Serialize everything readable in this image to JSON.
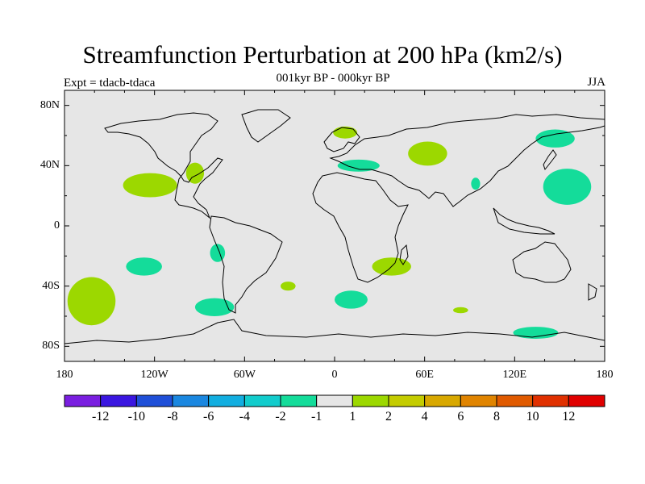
{
  "title": "Streamfunction Perturbation at 200 hPa (km2/s)",
  "subtitle": "001kyr BP - 000kyr BP",
  "experiment": "Expt = tdacb-tdaca",
  "season": "JJA",
  "map": {
    "projection": "cylindrical equidistant",
    "lon_range": [
      -180,
      180
    ],
    "lat_range": [
      -90,
      90
    ],
    "land_fill": "#e6e6e6",
    "lat_ticks": [
      {
        "value": 80,
        "label": "80N"
      },
      {
        "value": 40,
        "label": "40N"
      },
      {
        "value": 0,
        "label": "0"
      },
      {
        "value": -40,
        "label": "40S"
      },
      {
        "value": -80,
        "label": "80S"
      }
    ],
    "lon_ticks": [
      {
        "value": -180,
        "label": "180"
      },
      {
        "value": -120,
        "label": "120W"
      },
      {
        "value": -60,
        "label": "60W"
      },
      {
        "value": 0,
        "label": "0"
      },
      {
        "value": 60,
        "label": "60E"
      },
      {
        "value": 120,
        "label": "120E"
      },
      {
        "value": 180,
        "label": "180"
      }
    ]
  },
  "colorbar": {
    "colors": [
      "#7a1ee0",
      "#3a16e0",
      "#1f4fd8",
      "#1a87e0",
      "#12aee0",
      "#12cccc",
      "#14dc9a",
      "#e6e6e6",
      "#9cd800",
      "#c4cc00",
      "#d8a800",
      "#e08400",
      "#e05a00",
      "#e03000",
      "#e00000"
    ],
    "labels": [
      "-12",
      "-10",
      "-8",
      "-6",
      "-4",
      "-2",
      "-1",
      "1",
      "2",
      "4",
      "6",
      "8",
      "10",
      "12"
    ]
  },
  "chart_data": {
    "type": "contour-map",
    "title": "Streamfunction Perturbation at 200 hPa (km2/s)",
    "subtitle": "001kyr BP - 000kyr BP",
    "units": "km2/s",
    "levels": [
      -12,
      -10,
      -8,
      -6,
      -4,
      -2,
      -1,
      1,
      2,
      4,
      6,
      8,
      10,
      12
    ],
    "regions": [
      {
        "name": "north-pacific-east-positive",
        "level_bin": "1 to 2",
        "lon": -123,
        "lat": 27,
        "rx": 18,
        "ry": 8,
        "color": "#9cd800"
      },
      {
        "name": "gulf-of-mexico-positive",
        "level_bin": "1 to 2",
        "lon": -93,
        "lat": 35,
        "rx": 6,
        "ry": 7,
        "color": "#9cd800"
      },
      {
        "name": "scandinavia-positive",
        "level_bin": "1 to 2",
        "lon": 7,
        "lat": 62,
        "rx": 8,
        "ry": 4,
        "color": "#9cd800"
      },
      {
        "name": "central-asia-positive",
        "level_bin": "1 to 2",
        "lon": 62,
        "lat": 48,
        "rx": 13,
        "ry": 8,
        "color": "#9cd800"
      },
      {
        "name": "south-africa-positive",
        "level_bin": "1 to 2",
        "lon": 38,
        "lat": -27,
        "rx": 13,
        "ry": 6,
        "color": "#9cd800"
      },
      {
        "name": "south-pacific-positive",
        "level_bin": "1 to 2",
        "lon": -162,
        "lat": -50,
        "rx": 16,
        "ry": 16,
        "color": "#9cd800"
      },
      {
        "name": "south-atlantic-small-positive",
        "level_bin": "1 to 2",
        "lon": -31,
        "lat": -40,
        "rx": 5,
        "ry": 3,
        "color": "#9cd800"
      },
      {
        "name": "southern-indian-small-positive",
        "level_bin": "1 to 2",
        "lon": 84,
        "lat": -56,
        "rx": 5,
        "ry": 2,
        "color": "#9cd800"
      },
      {
        "name": "mediterranean-negative",
        "level_bin": "-2 to -1",
        "lon": 16,
        "lat": 40,
        "rx": 14,
        "ry": 4,
        "color": "#14dc9a"
      },
      {
        "name": "east-asia-negative",
        "level_bin": "-2 to -1",
        "lon": 147,
        "lat": 58,
        "rx": 13,
        "ry": 6,
        "color": "#14dc9a"
      },
      {
        "name": "northwest-pacific-negative",
        "level_bin": "-2 to -1",
        "lon": 155,
        "lat": 26,
        "rx": 16,
        "ry": 12,
        "color": "#14dc9a"
      },
      {
        "name": "tibet-small-negative",
        "level_bin": "-2 to -1",
        "lon": 94,
        "lat": 28,
        "rx": 3,
        "ry": 4,
        "color": "#14dc9a"
      },
      {
        "name": "southeast-pacific-negative",
        "level_bin": "-2 to -1",
        "lon": -127,
        "lat": -27,
        "rx": 12,
        "ry": 6,
        "color": "#14dc9a"
      },
      {
        "name": "south-america-negative",
        "level_bin": "-2 to -1",
        "lon": -78,
        "lat": -18,
        "rx": 5,
        "ry": 6,
        "color": "#14dc9a"
      },
      {
        "name": "south-pacific-chile-negative",
        "level_bin": "-2 to -1",
        "lon": -80,
        "lat": -54,
        "rx": 13,
        "ry": 6,
        "color": "#14dc9a"
      },
      {
        "name": "south-atlantic-africa-negative",
        "level_bin": "-2 to -1",
        "lon": 11,
        "lat": -49,
        "rx": 11,
        "ry": 6,
        "color": "#14dc9a"
      },
      {
        "name": "southern-ocean-australia-negative",
        "level_bin": "-2 to -1",
        "lon": 134,
        "lat": -71,
        "rx": 15,
        "ry": 4,
        "color": "#14dc9a"
      }
    ]
  }
}
